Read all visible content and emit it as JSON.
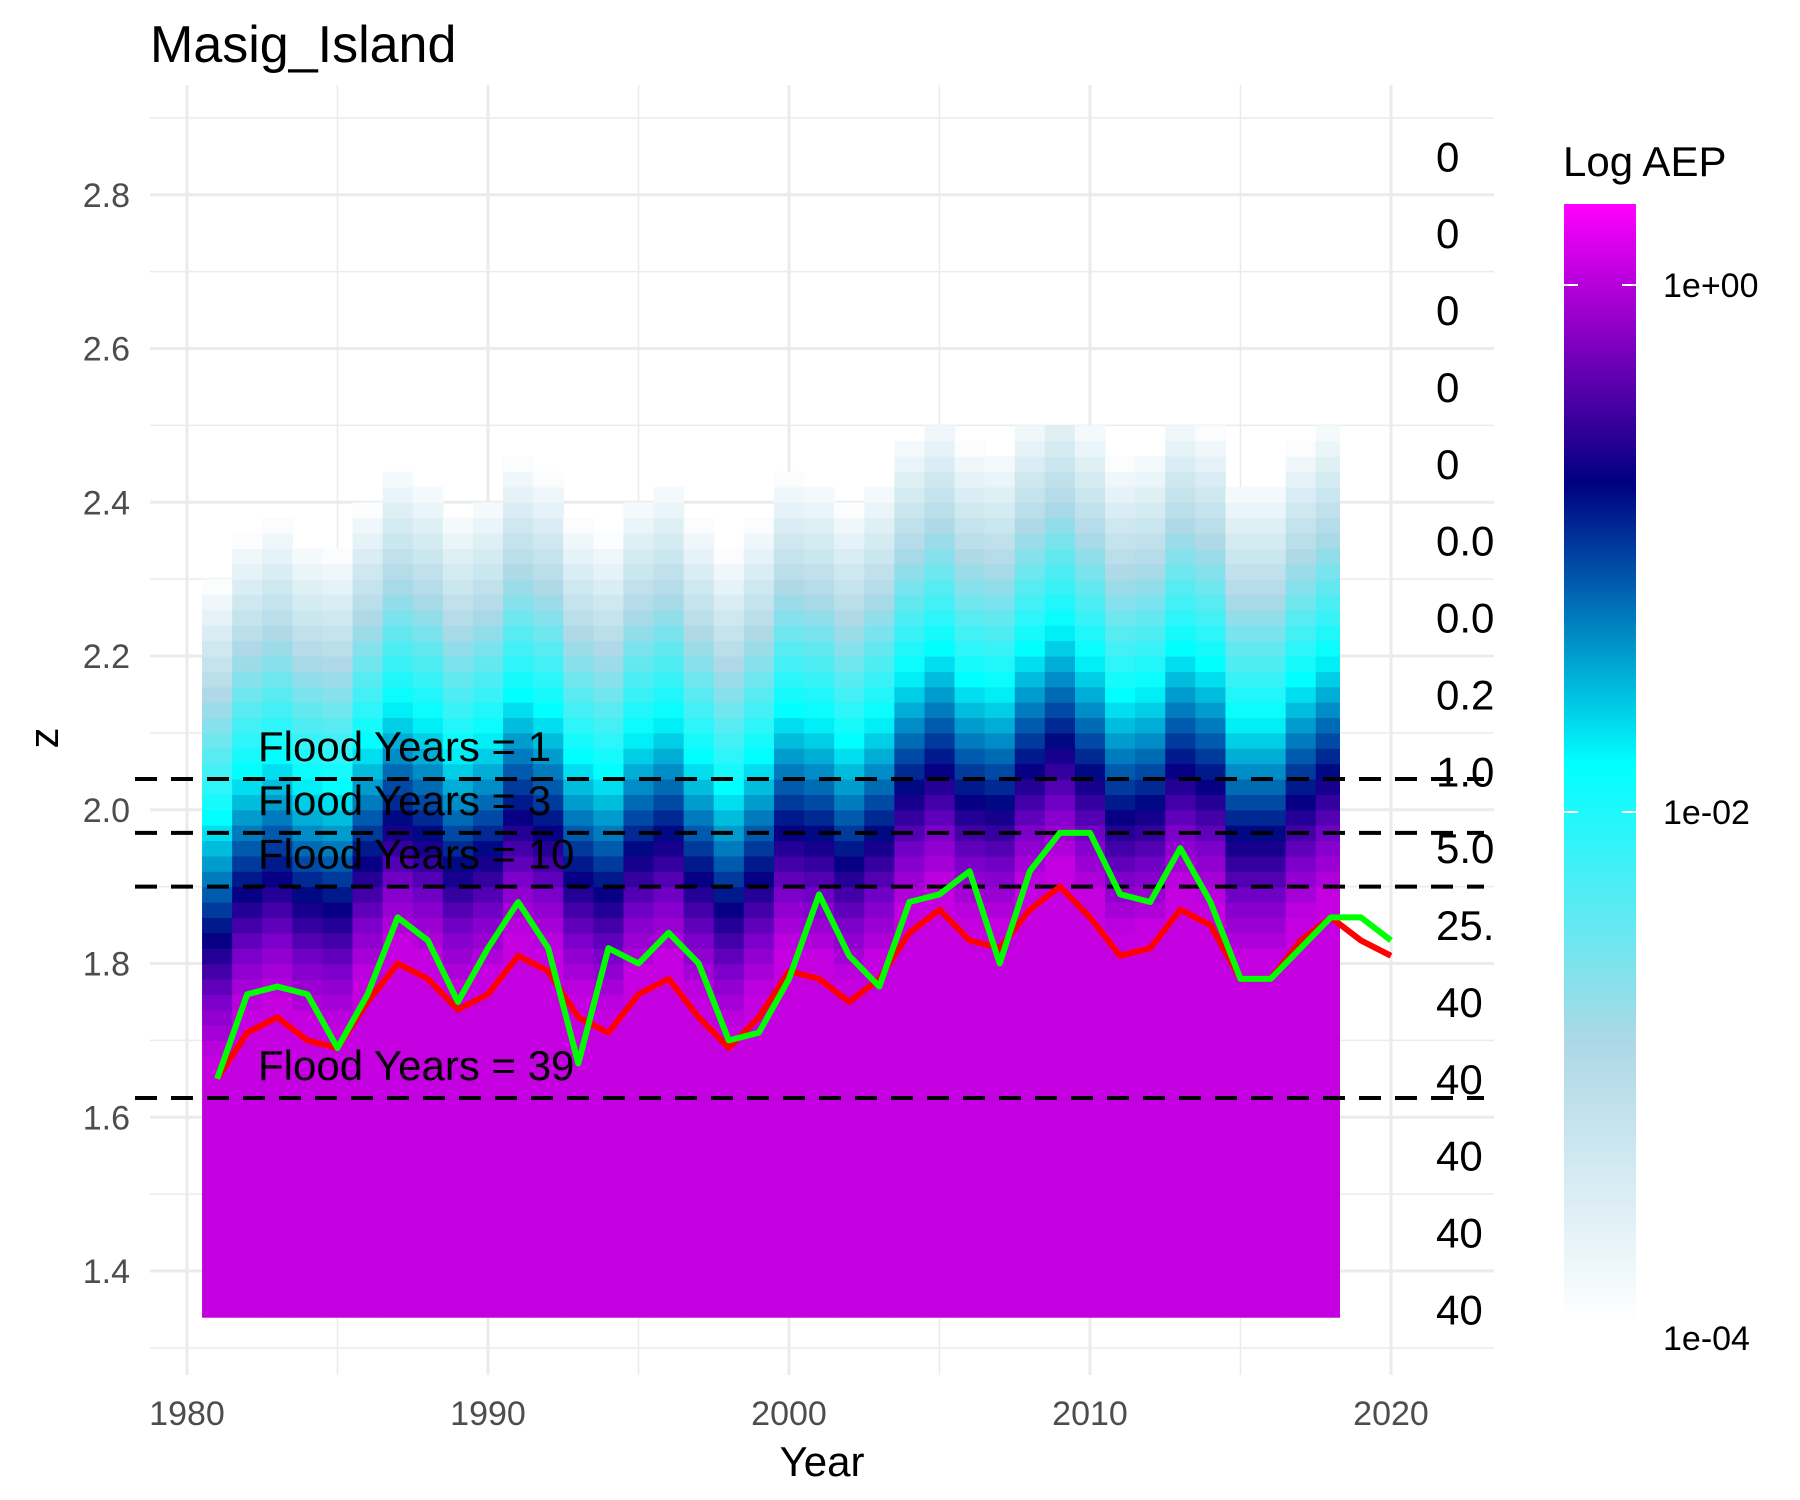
{
  "chart_data": {
    "type": "heatmap",
    "title": "Masig_Island",
    "xlabel": "Year",
    "ylabel": "z",
    "xlim": [
      1978.5,
      2023
    ],
    "ylim": [
      1.3,
      2.9
    ],
    "xticks": [
      "1980",
      "1990",
      "2000",
      "2010",
      "2020"
    ],
    "yticks": [
      "1.4",
      "1.6",
      "1.8",
      "2.0",
      "2.2",
      "2.4",
      "2.6",
      "2.8"
    ],
    "grid": true,
    "legend": {
      "title": "Log AEP",
      "position": "right",
      "ticks": [
        "1e+00",
        "1e-02",
        "1e-04"
      ],
      "colors": {
        "high": "#ff00ff",
        "mid_high": "#000080",
        "mid": "#00ffff",
        "mid_low": "#add8e6",
        "low": "#ffffff"
      }
    },
    "years": [
      1981,
      1982,
      1983,
      1984,
      1985,
      1986,
      1987,
      1988,
      1989,
      1990,
      1991,
      1992,
      1993,
      1994,
      1995,
      1996,
      1997,
      1998,
      1999,
      2000,
      2001,
      2002,
      2003,
      2004,
      2005,
      2006,
      2007,
      2008,
      2009,
      2010,
      2011,
      2012,
      2013,
      2014,
      2015,
      2016,
      2017,
      2018,
      2019,
      2020
    ],
    "series": [
      {
        "color": "#ff0000",
        "values": [
          1.65,
          1.71,
          1.73,
          1.7,
          1.69,
          1.75,
          1.8,
          1.78,
          1.74,
          1.76,
          1.81,
          1.79,
          1.73,
          1.71,
          1.76,
          1.78,
          1.73,
          1.69,
          1.73,
          1.79,
          1.78,
          1.75,
          1.78,
          1.84,
          1.87,
          1.83,
          1.82,
          1.87,
          1.9,
          1.86,
          1.81,
          1.82,
          1.87,
          1.85,
          1.78,
          1.78,
          1.83,
          1.86,
          1.83,
          1.81
        ]
      },
      {
        "color": "#00ff00",
        "values": [
          1.65,
          1.76,
          1.77,
          1.76,
          1.69,
          1.76,
          1.86,
          1.83,
          1.75,
          1.82,
          1.88,
          1.82,
          1.67,
          1.82,
          1.8,
          1.84,
          1.8,
          1.7,
          1.71,
          1.78,
          1.89,
          1.81,
          1.77,
          1.88,
          1.89,
          1.92,
          1.8,
          1.92,
          1.97,
          1.97,
          1.89,
          1.88,
          1.95,
          1.88,
          1.78,
          1.78,
          1.82,
          1.86,
          1.86,
          1.83
        ]
      }
    ],
    "flood_lines": [
      {
        "z": 2.04,
        "label": "Flood Years = 1"
      },
      {
        "z": 1.97,
        "label": "Flood Years = 3"
      },
      {
        "z": 1.9,
        "label": "Flood Years = 10"
      },
      {
        "z": 1.625,
        "label": "Flood Years = 39"
      }
    ],
    "right_labels": [
      {
        "z": 2.85,
        "text": "0"
      },
      {
        "z": 2.75,
        "text": "0"
      },
      {
        "z": 2.65,
        "text": "0"
      },
      {
        "z": 2.55,
        "text": "0"
      },
      {
        "z": 2.45,
        "text": "0"
      },
      {
        "z": 2.35,
        "text": "0.0"
      },
      {
        "z": 2.25,
        "text": "0.0"
      },
      {
        "z": 2.15,
        "text": "0.2"
      },
      {
        "z": 2.05,
        "text": "1.0"
      },
      {
        "z": 1.95,
        "text": "5.0"
      },
      {
        "z": 1.85,
        "text": "25."
      },
      {
        "z": 1.75,
        "text": "40"
      },
      {
        "z": 1.65,
        "text": "40"
      },
      {
        "z": 1.55,
        "text": "40"
      },
      {
        "z": 1.45,
        "text": "40"
      },
      {
        "z": 1.35,
        "text": "40"
      }
    ]
  }
}
